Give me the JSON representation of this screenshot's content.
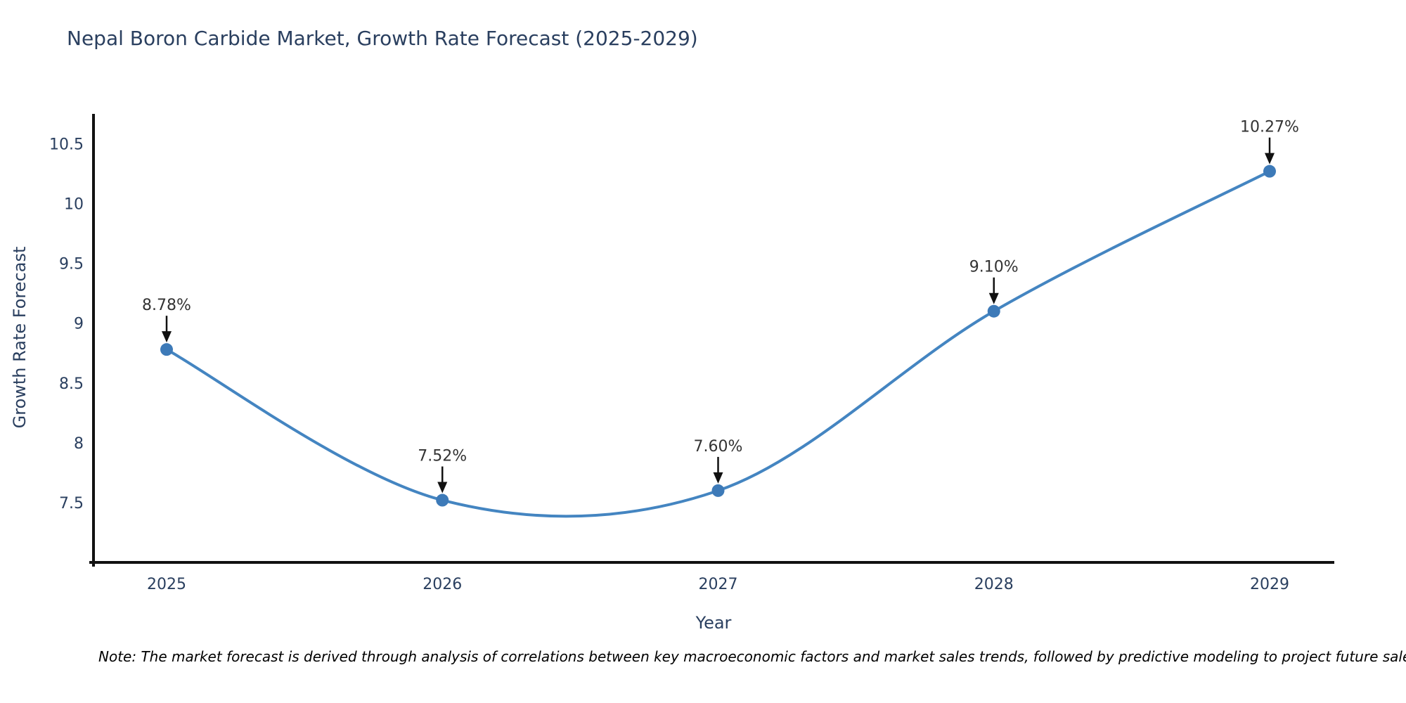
{
  "title": "Nepal Boron Carbide Market, Growth Rate Forecast (2025-2029)",
  "note": "Note: The market forecast is derived through analysis of correlations between key macroeconomic factors and market sales trends, followed by predictive modeling to project future sales",
  "chart_data": {
    "type": "line",
    "title": "Nepal Boron Carbide Market, Growth Rate Forecast (2025-2029)",
    "xlabel": "Year",
    "ylabel": "Growth Rate Forecast",
    "categories": [
      "2025",
      "2026",
      "2027",
      "2028",
      "2029"
    ],
    "values": [
      8.78,
      7.52,
      7.6,
      9.1,
      10.27
    ],
    "point_labels": [
      "8.78%",
      "7.52%",
      "7.60%",
      "9.10%",
      "10.27%"
    ],
    "ytick_values": [
      7.5,
      8,
      8.5,
      9,
      9.5,
      10,
      10.5
    ],
    "ytick_labels": [
      "7.5",
      "8",
      "8.5",
      "9",
      "9.5",
      "10",
      "10.5"
    ],
    "ylim": [
      7.0,
      10.75
    ],
    "line_shape": "spline",
    "grid": false,
    "legend": "none",
    "annotations": "arrow-to-point",
    "colors": {
      "line": "#4485c1",
      "marker": "#3d7ab8",
      "axis": "#111111",
      "tick_label": "#2a3f5f",
      "title": "#2a3f5f",
      "annotation_text": "#333333",
      "arrow": "#111111",
      "note": "#000000",
      "background": "#ffffff"
    }
  }
}
